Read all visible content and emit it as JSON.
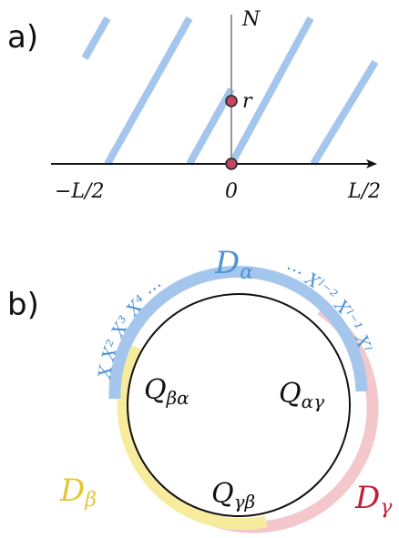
{
  "panel_a": {
    "label": "a)",
    "n_label": "N",
    "r_label": "r",
    "left_tick": "−L/2",
    "zero_tick": "0",
    "right_tick": "L/2"
  },
  "panel_b": {
    "label": "b)",
    "d_alpha": {
      "main": "D",
      "sub": "α"
    },
    "d_beta": {
      "main": "D",
      "sub": "β"
    },
    "d_gamma": {
      "main": "D",
      "sub": "γ"
    },
    "q_beta_alpha": {
      "main": "Q",
      "sub": "βα"
    },
    "q_alpha_gamma": {
      "main": "Q",
      "sub": "αγ"
    },
    "q_gamma_beta": {
      "main": "Q",
      "sub": "γβ"
    },
    "left_arc_text": "X X² X³ X⁴ ···",
    "right_arc_text": "··· Xˡ⁻² Xˡ⁻¹ Xˡ"
  },
  "colors": {
    "blue": "#a4c6ec",
    "blue_text": "#4f93d6",
    "yellow": "#f7ec9e",
    "pink": "#f3c7cc",
    "dot": "#c0455e",
    "d_beta_text": "#e3c833",
    "d_gamma_text": "#c0203a"
  }
}
